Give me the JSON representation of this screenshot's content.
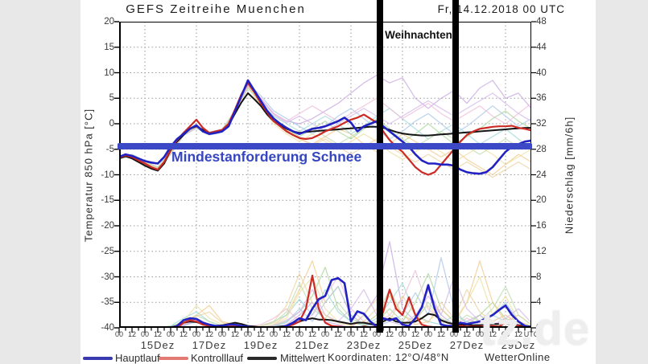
{
  "page": {
    "title": "GEFS Zeitreihe Muenchen",
    "run_label": "Fr, 14.12.2018 00 UTC"
  },
  "annotations": {
    "weihnachten": "Weihnachten",
    "snow_line_label": "Mindestanforderung Schnee"
  },
  "legend": {
    "items": [
      {
        "label": "Hauptlauf",
        "swatch_color": "#3a3ab0"
      },
      {
        "label": "Kontrolllauf",
        "swatch_color": "#e07a72"
      },
      {
        "label": "Mittelwert",
        "swatch_color": "#2a2a2a"
      }
    ],
    "coordinates": "Koordinaten: 12°O/48°N",
    "credit": "WetterOnline"
  },
  "watermark": "tz.de",
  "chart_data": {
    "type": "line",
    "title": "GEFS Zeitreihe Muenchen",
    "x_axis": {
      "start": "14.12.2018 00 UTC",
      "end": "30.12.2018 00 UTC",
      "step_hours": 6,
      "hour_labels": [
        "00",
        "12",
        "00",
        "12",
        "00",
        "12",
        "00",
        "12",
        "00",
        "12",
        "00",
        "12",
        "00",
        "12",
        "00",
        "12",
        "00",
        "12",
        "00",
        "12",
        "00",
        "12",
        "00",
        "12",
        "00",
        "12",
        "00",
        "12",
        "00",
        "12",
        "00",
        "12",
        "UTC"
      ],
      "date_labels": [
        "15Dez",
        "17Dez",
        "19Dez",
        "21Dez",
        "23Dez",
        "25Dez",
        "27Dez",
        "29Dez"
      ],
      "grid": "dotted vertical lines at 00 UTC of odd dates"
    },
    "y_left": {
      "label": "Temperatur 850 hPa [°C]",
      "min": -40,
      "max": 20,
      "ticks": [
        20,
        15,
        10,
        5,
        0,
        -5,
        -10,
        -15,
        -20,
        -25,
        -30,
        -35,
        -40
      ]
    },
    "y_right": {
      "label": "Niederschlag [mm/6h]",
      "min": 0,
      "max": 48,
      "ticks": [
        48,
        44,
        40,
        36,
        32,
        28,
        24,
        20,
        16,
        12,
        8,
        4,
        0
      ]
    },
    "snow_line_temp_c": -4.5,
    "christmas_band_utc": [
      "24Dez 00UTC",
      "27Dez 00UTC"
    ],
    "colors": {
      "hauptlauf": "#2222c2",
      "kontrolllauf": "#cc2a24",
      "mittelwert": "#141414",
      "grid": "#9a9a9a",
      "snow_line": "#3b49c6"
    },
    "series_main": [
      {
        "name": "Mittelwert",
        "color": "#141414",
        "width": 2,
        "temp": [
          -6.8,
          -6.4,
          -6.8,
          -7.5,
          -8.2,
          -8.8,
          -9.2,
          -7.8,
          -5.2,
          -3.5,
          -2.2,
          -1.0,
          -0.5,
          -1.2,
          -2.0,
          -1.8,
          -1.5,
          -0.3,
          2.0,
          4.2,
          6.0,
          4.8,
          3.5,
          1.8,
          0.5,
          -0.3,
          -1.0,
          -1.5,
          -1.8,
          -1.6,
          -1.5,
          -1.4,
          -1.3,
          -1.2,
          -1.1,
          -1.0,
          -0.9,
          -0.8,
          -0.7,
          -0.6,
          -0.6,
          -0.8,
          -1.2,
          -1.6,
          -1.9,
          -2.1,
          -2.2,
          -2.3,
          -2.3,
          -2.2,
          -2.1,
          -2.0,
          -1.9,
          -1.8,
          -1.7,
          -1.6,
          -1.5,
          -1.4,
          -1.3,
          -1.2,
          -1.1,
          -1.0,
          -0.9,
          -0.8,
          -0.8
        ],
        "precip": [
          0,
          0,
          0,
          0,
          0,
          0,
          0,
          0,
          0.1,
          0.3,
          0.8,
          1.0,
          0.9,
          0.6,
          0.4,
          0.3,
          0.4,
          0.6,
          0.8,
          0.6,
          0.3,
          0.2,
          0.1,
          0.1,
          0.1,
          0.2,
          0.3,
          0.6,
          1.0,
          1.3,
          1.5,
          1.3,
          1.3,
          1.2,
          1.0,
          0.8,
          0.6,
          0.8,
          0.8,
          0.6,
          0.5,
          1.0,
          1.5,
          1.0,
          0.8,
          0.8,
          1.0,
          1.5,
          2.2,
          2.0,
          1.2,
          0.8,
          0.6,
          0.5,
          0.5,
          0.4,
          0.4,
          0.5,
          0.6,
          0.6,
          0.7,
          0.5,
          0.4,
          0.3,
          0.2
        ]
      },
      {
        "name": "Kontrolllauf",
        "color": "#cc2a24",
        "width": 2.2,
        "temp": [
          -6.6,
          -6.2,
          -6.5,
          -7.2,
          -7.8,
          -8.5,
          -9.0,
          -7.5,
          -5.0,
          -3.2,
          -1.8,
          -0.5,
          0.8,
          -0.8,
          -1.8,
          -1.5,
          -1.2,
          0.0,
          2.8,
          5.8,
          8.0,
          6.2,
          4.0,
          2.2,
          0.5,
          -0.5,
          -1.5,
          -2.2,
          -2.8,
          -3.0,
          -2.8,
          -2.2,
          -1.5,
          -1.0,
          -0.5,
          0.2,
          0.8,
          1.2,
          1.8,
          1.0,
          0.2,
          -1.5,
          -3.2,
          -4.5,
          -5.5,
          -7.0,
          -8.5,
          -9.5,
          -10.0,
          -9.5,
          -8.0,
          -6.5,
          -5.0,
          -3.5,
          -2.2,
          -1.5,
          -1.0,
          -0.8,
          -0.6,
          -0.5,
          -0.5,
          -0.4,
          -0.8,
          -1.0,
          -1.3
        ],
        "precip": [
          0,
          0,
          0,
          0,
          0,
          0,
          0,
          0,
          0,
          0,
          0.8,
          1.2,
          1.0,
          0.5,
          0.3,
          0.2,
          0.2,
          0.4,
          0.4,
          0.2,
          0.1,
          0,
          0,
          0,
          0,
          0,
          0.2,
          0.5,
          1.0,
          3.0,
          8.2,
          3.0,
          0.8,
          0.3,
          0.2,
          0.1,
          0,
          0,
          0.2,
          0.1,
          0.2,
          2.5,
          6.0,
          3.0,
          2.0,
          4.8,
          2.0,
          0.5,
          0.2,
          0.1,
          0.1,
          0.2,
          0.2,
          0.3,
          0.2,
          0.2,
          0.2,
          0.3,
          0.3,
          0.2,
          0.8,
          0.5,
          0.3,
          0.1,
          0
        ]
      },
      {
        "name": "Hauptlauf",
        "color": "#2222c2",
        "width": 2.6,
        "temp": [
          -6.5,
          -6.0,
          -6.3,
          -6.8,
          -7.3,
          -7.6,
          -7.8,
          -6.5,
          -4.5,
          -3.0,
          -2.0,
          -1.0,
          -0.3,
          -1.5,
          -2.0,
          -1.8,
          -1.5,
          -0.5,
          2.5,
          5.5,
          8.5,
          6.5,
          4.5,
          2.5,
          1.0,
          0.0,
          -0.8,
          -1.5,
          -2.0,
          -1.5,
          -1.0,
          -0.8,
          -0.5,
          0.0,
          0.5,
          1.2,
          0.2,
          -1.5,
          -0.5,
          0.0,
          0.5,
          -0.5,
          -1.5,
          -2.5,
          -3.5,
          -4.5,
          -6.0,
          -7.2,
          -7.8,
          -7.8,
          -8.0,
          -8.0,
          -8.2,
          -9.0,
          -9.5,
          -9.7,
          -9.8,
          -9.5,
          -8.5,
          -7.0,
          -5.5,
          -4.5,
          -4.0,
          -3.5,
          -3.3
        ],
        "precip": [
          0,
          0,
          0,
          0,
          0,
          0,
          0,
          0,
          0,
          0.3,
          1.2,
          1.5,
          1.4,
          0.8,
          0.5,
          0.3,
          0.3,
          0.5,
          0.5,
          0.3,
          0.2,
          0,
          0,
          0,
          0,
          0,
          0.3,
          0.8,
          1.5,
          1.2,
          3.0,
          4.5,
          5.0,
          7.5,
          7.8,
          7.0,
          1.0,
          2.6,
          2.2,
          1.0,
          0.2,
          1.5,
          1.2,
          1.5,
          0.5,
          0.3,
          1.5,
          3.2,
          6.7,
          3.0,
          0.5,
          0.3,
          0.3,
          0.8,
          0.6,
          0.8,
          1.0,
          1.5,
          2.0,
          2.8,
          3.5,
          2.0,
          1.0,
          0.3,
          0.1
        ]
      }
    ],
    "ensemble_members": [
      {
        "color": "#c7a7e0",
        "temp": [
          -6.4,
          -6.1,
          -7.4,
          -8.6,
          -5.5,
          -1.8,
          -0.4,
          -1.7,
          -1.2,
          2.5,
          7.8,
          5.0,
          2.0,
          0.5,
          0.0,
          1.0,
          2.5,
          4.0,
          6.0,
          8.0,
          9.5,
          8.0,
          9.0,
          5.0,
          3.0,
          5.0,
          6.5,
          4.0,
          7.0,
          8.5,
          5.0,
          6.0,
          3.0
        ],
        "precip": [
          0,
          0,
          0,
          0,
          0,
          0.5,
          1.0,
          0.3,
          0,
          0.5,
          0,
          0,
          0,
          0.5,
          2,
          4,
          1,
          0.5,
          0,
          2,
          5,
          13.5,
          3,
          1,
          6,
          2,
          0.5,
          1,
          2,
          0.5,
          1,
          0.3,
          0
        ]
      },
      {
        "color": "#a9d59a",
        "temp": [
          -6.7,
          -6.3,
          -7.7,
          -8.9,
          -5.9,
          -2.2,
          -0.8,
          -2.1,
          -1.6,
          2.1,
          7.2,
          4.5,
          1.0,
          -1.0,
          -2.5,
          -1.0,
          0.5,
          -1.5,
          -3.0,
          -1.0,
          1.0,
          -1.0,
          -3.5,
          -2.0,
          0.0,
          -2.0,
          -4.0,
          -2.5,
          -1.0,
          1.0,
          2.5,
          0.5,
          -1.0
        ],
        "precip": [
          0,
          0,
          0,
          0,
          0.2,
          1.0,
          1.5,
          0.5,
          0.2,
          0,
          0,
          0,
          0.3,
          1.0,
          2.5,
          5.0,
          9.5,
          3.0,
          1.0,
          0.3,
          1.0,
          3.0,
          1.0,
          4.0,
          8.5,
          3.0,
          1.0,
          0.5,
          2.0,
          4.0,
          1.5,
          0.5,
          0
        ]
      },
      {
        "color": "#f2c98c",
        "temp": [
          -6.5,
          -6.2,
          -7.5,
          -8.7,
          -5.6,
          -1.9,
          -0.5,
          -1.8,
          -1.3,
          2.4,
          7.6,
          4.0,
          0.5,
          -1.5,
          -3.0,
          -4.0,
          -2.5,
          -1.0,
          -2.0,
          -4.0,
          -5.5,
          -4.0,
          -2.0,
          -3.5,
          -5.0,
          -6.5,
          -5.0,
          -7.0,
          -8.5,
          -10.0,
          -8.0,
          -6.0,
          -7.5
        ],
        "precip": [
          0,
          0,
          0,
          0,
          0,
          0.8,
          2.0,
          3.5,
          1.0,
          0.5,
          0,
          0,
          0.5,
          2.0,
          6.0,
          10.5,
          4.0,
          6.5,
          2.0,
          0.5,
          2.0,
          5.0,
          2.0,
          0.5,
          1.0,
          3.0,
          1.0,
          4.0,
          10.5,
          4.0,
          1.0,
          2.0,
          0.5
        ]
      },
      {
        "color": "#a9c7ea",
        "temp": [
          -6.6,
          -6.0,
          -7.3,
          -8.5,
          -5.4,
          -1.7,
          -0.3,
          -1.6,
          -1.1,
          2.6,
          7.9,
          5.5,
          2.5,
          1.0,
          -0.5,
          -2.0,
          -0.5,
          1.5,
          3.0,
          1.0,
          -1.0,
          -3.0,
          -1.5,
          0.5,
          2.0,
          0.0,
          -2.0,
          -0.5,
          1.5,
          3.5,
          1.5,
          -0.5,
          1.0
        ],
        "precip": [
          0,
          0,
          0,
          0,
          0,
          0.3,
          1.0,
          0.5,
          0,
          0,
          0,
          0,
          0.2,
          0.8,
          3.0,
          1.0,
          4.0,
          6.5,
          2.0,
          0.5,
          0.3,
          1.0,
          2.0,
          5.5,
          2.0,
          11.0,
          3.0,
          0.5,
          1.0,
          2.0,
          4.0,
          1.0,
          0.3
        ]
      },
      {
        "color": "#9fd8d8",
        "temp": [
          -6.8,
          -6.4,
          -7.8,
          -9.0,
          -6.0,
          -2.3,
          -0.9,
          -2.2,
          -1.7,
          2.0,
          7.0,
          4.0,
          1.5,
          0.0,
          -1.5,
          0.0,
          1.5,
          0.0,
          -2.0,
          -0.5,
          1.5,
          3.0,
          1.0,
          -1.0,
          -3.0,
          -1.5,
          0.0,
          -2.0,
          -4.0,
          -2.5,
          -1.0,
          -3.0,
          -5.0
        ],
        "precip": [
          0,
          0,
          0,
          0,
          0.3,
          1.5,
          2.5,
          1.0,
          0.3,
          0,
          0,
          0.3,
          1.0,
          2.0,
          4.5,
          2.0,
          6.0,
          2.5,
          1.0,
          0.3,
          1.5,
          4.0,
          7.0,
          2.0,
          1.0,
          0.5,
          2.0,
          1.0,
          0.5,
          2.0,
          1.0,
          0.5,
          0
        ]
      },
      {
        "color": "#ece0a0",
        "temp": [
          -6.4,
          -6.1,
          -7.4,
          -8.6,
          -5.5,
          -1.8,
          -0.4,
          -1.7,
          -1.2,
          2.5,
          7.4,
          3.5,
          0.0,
          -2.0,
          -3.5,
          -2.0,
          -3.5,
          -5.0,
          -3.5,
          -2.0,
          -3.5,
          -5.5,
          -7.0,
          -5.5,
          -4.0,
          -5.5,
          -7.5,
          -6.0,
          -4.5,
          -6.0,
          -8.0,
          -6.5,
          -5.0
        ],
        "precip": [
          0,
          0,
          0,
          0,
          0,
          1.0,
          3.5,
          1.5,
          0.5,
          0.2,
          0,
          0,
          0.5,
          1.5,
          5.5,
          8.0,
          3.0,
          1.0,
          0.5,
          2.0,
          4.5,
          2.0,
          0.5,
          1.5,
          3.5,
          1.0,
          0.5,
          4.0,
          8.0,
          2.0,
          5.0,
          1.0,
          0.3
        ]
      },
      {
        "color": "#eebcd8",
        "temp": [
          -6.6,
          -6.2,
          -7.6,
          -8.8,
          -5.8,
          -2.1,
          -0.7,
          -2.0,
          -1.5,
          2.2,
          7.7,
          5.0,
          2.0,
          0.5,
          2.0,
          3.5,
          2.0,
          0.5,
          2.0,
          3.5,
          5.0,
          3.0,
          1.0,
          2.5,
          4.0,
          2.0,
          0.5,
          2.0,
          3.5,
          1.5,
          0.0,
          2.0,
          4.0
        ],
        "precip": [
          0,
          0,
          0,
          0,
          0,
          0.5,
          1.5,
          0.5,
          0,
          0,
          0.2,
          0.5,
          1.5,
          3.0,
          1.0,
          2.0,
          5.0,
          8.0,
          3.0,
          1.0,
          0.5,
          2.0,
          4.5,
          9.0,
          3.0,
          1.0,
          0.5,
          1.5,
          0.5,
          1.0,
          2.0,
          0.5,
          0
        ]
      },
      {
        "color": "#bfdcae",
        "temp": [
          -6.5,
          -6.1,
          -7.5,
          -8.7,
          -5.7,
          -2.0,
          -0.6,
          -1.9,
          -1.4,
          2.3,
          7.3,
          4.2,
          1.2,
          -0.8,
          -2.0,
          -0.8,
          -2.5,
          -4.0,
          -2.5,
          -1.0,
          0.5,
          -1.5,
          -3.0,
          -4.5,
          -3.0,
          -1.5,
          -3.0,
          -4.5,
          -6.0,
          -4.5,
          -3.0,
          -4.5,
          -3.0
        ],
        "precip": [
          0,
          0,
          0,
          0,
          0.2,
          0.8,
          2.0,
          1.0,
          0.3,
          0,
          0,
          0.2,
          0.8,
          2.5,
          7.0,
          3.0,
          1.5,
          4.0,
          1.5,
          0.5,
          2.0,
          6.0,
          2.0,
          1.0,
          4.0,
          1.5,
          0.5,
          2.0,
          1.0,
          3.0,
          6.5,
          2.0,
          0.5
        ]
      },
      {
        "color": "#d4b8ea",
        "temp": [
          -6.7,
          -6.3,
          -7.7,
          -8.9,
          -5.9,
          -2.2,
          -0.8,
          -2.1,
          -1.6,
          2.1,
          7.5,
          4.8,
          1.8,
          0.2,
          1.5,
          0.0,
          -1.5,
          0.0,
          1.5,
          3.0,
          1.5,
          0.0,
          1.5,
          3.0,
          4.5,
          3.0,
          1.5,
          3.0,
          4.5,
          6.0,
          4.0,
          2.0,
          0.5
        ],
        "precip": [
          0,
          0,
          0,
          0,
          0,
          0.4,
          1.2,
          0.4,
          0,
          0.2,
          0,
          0,
          0.4,
          1.2,
          2.5,
          6.0,
          2.0,
          1.0,
          3.0,
          6.0,
          2.0,
          1.0,
          0.4,
          2.0,
          5.0,
          2.0,
          8.0,
          3.0,
          1.0,
          0.4,
          1.5,
          3.0,
          0.8
        ]
      },
      {
        "color": "#ecd2a0",
        "temp": [
          -6.6,
          -6.2,
          -7.6,
          -8.8,
          -5.8,
          -2.1,
          -0.7,
          -2.0,
          -1.5,
          2.2,
          7.1,
          3.8,
          0.8,
          -1.2,
          -2.8,
          -4.2,
          -3.0,
          -4.5,
          -6.0,
          -4.5,
          -3.0,
          -4.5,
          -6.0,
          -7.5,
          -6.0,
          -7.5,
          -9.0,
          -7.5,
          -9.0,
          -10.5,
          -9.0,
          -7.5,
          -9.0
        ],
        "precip": [
          0,
          0,
          0,
          0,
          0.1,
          0.6,
          1.8,
          2.5,
          0.8,
          0.3,
          0,
          0.3,
          1.0,
          3.5,
          8.5,
          4.0,
          2.0,
          0.8,
          0.3,
          1.0,
          3.0,
          1.0,
          5.0,
          2.0,
          0.8,
          4.0,
          1.5,
          6.0,
          2.5,
          1.0,
          2.0,
          0.8,
          0.2
        ]
      }
    ]
  }
}
